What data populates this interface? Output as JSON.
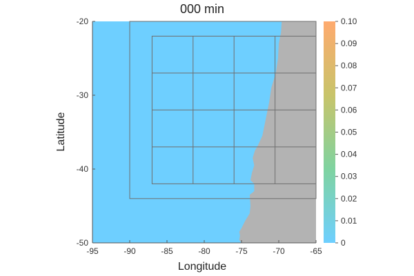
{
  "chart_data": {
    "type": "heatmap",
    "title": "000 min",
    "xlabel": "Longitude",
    "ylabel": "Latitude",
    "xlim": [
      -95,
      -65
    ],
    "ylim": [
      -50,
      -20
    ],
    "xticks": [
      -95,
      -90,
      -85,
      -80,
      -75,
      -70,
      -65
    ],
    "xtick_labels": [
      "-95",
      "-90",
      "-85",
      "-80",
      "-75",
      "-70",
      "-65"
    ],
    "yticks": [
      -50,
      -40,
      -30,
      -20
    ],
    "ytick_labels": [
      "-50",
      "-40",
      "-30",
      "-20"
    ],
    "colorbar": {
      "range": [
        0,
        0.1
      ],
      "ticks": [
        0,
        0.01,
        0.02,
        0.03,
        0.04,
        0.05,
        0.06,
        0.07,
        0.08,
        0.09,
        0.1
      ],
      "tick_labels": [
        "0",
        "0.01",
        "0.02",
        "0.03",
        "0.04",
        "0.05",
        "0.06",
        "0.07",
        "0.08",
        "0.09",
        "0.10"
      ],
      "colors": [
        "#6ecfff",
        "#7fd3a0",
        "#c8c46a",
        "#ffaa6e"
      ]
    },
    "field_value": 0,
    "ocean_color": "#6ecfff",
    "land_color": "#b3b3b3",
    "coastline": [
      [
        -69.6,
        -20
      ],
      [
        -69.7,
        -21.5
      ],
      [
        -70.0,
        -23
      ],
      [
        -70.1,
        -25
      ],
      [
        -70.4,
        -27
      ],
      [
        -71.0,
        -29
      ],
      [
        -71.3,
        -31
      ],
      [
        -71.7,
        -33
      ],
      [
        -72.0,
        -34.5
      ],
      [
        -72.2,
        -35.5
      ],
      [
        -72.8,
        -36.8
      ],
      [
        -73.2,
        -37.5
      ],
      [
        -73.5,
        -38.5
      ],
      [
        -73.3,
        -39.5
      ],
      [
        -73.6,
        -40.5
      ],
      [
        -73.8,
        -41.5
      ],
      [
        -73.3,
        -42
      ],
      [
        -73.3,
        -43
      ],
      [
        -73.9,
        -43.5
      ],
      [
        -73.8,
        -45
      ],
      [
        -73.9,
        -46
      ],
      [
        -74.5,
        -47
      ],
      [
        -75.0,
        -48
      ],
      [
        -75.3,
        -48.5
      ],
      [
        -75.2,
        -49
      ],
      [
        -75.3,
        -49.6
      ],
      [
        -75.0,
        -50
      ]
    ],
    "grid_boxes": [
      {
        "lon": [
          -90,
          -65
        ],
        "lat": [
          -44,
          -20
        ],
        "divisions": [
          1,
          1
        ]
      },
      {
        "lon": [
          -87,
          -65
        ],
        "lat": [
          -42,
          -22
        ],
        "divisions": [
          4,
          4
        ]
      }
    ]
  }
}
